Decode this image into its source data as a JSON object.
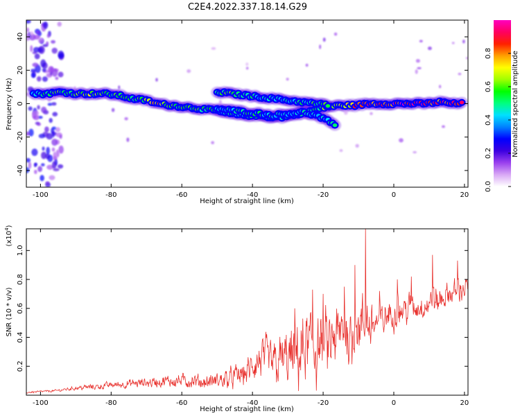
{
  "figure_title": "C2E4.2022.337.18.14.G29",
  "chart_data": [
    {
      "type": "heatmap",
      "title": "C2E4.2022.337.18.14.G29",
      "xlabel": "Height of straight line (km)",
      "ylabel": "Frequency (Hz)",
      "xlim": [
        -104,
        21
      ],
      "ylim": [
        -50,
        50
      ],
      "xticks": [
        -100,
        -80,
        -60,
        -40,
        -20,
        0,
        20
      ],
      "yticks": [
        -40,
        -20,
        0,
        20,
        40
      ],
      "colorbar": {
        "label": "Normalized spectral amplitude",
        "range": [
          0,
          1
        ],
        "ticks": [
          0.0,
          0.2,
          0.4,
          0.6,
          0.8
        ],
        "colors": [
          "#ffffff",
          "#d9a8f5",
          "#9a40ee",
          "#3c00e0",
          "#0000ff",
          "#0080ff",
          "#00e0ff",
          "#00ff80",
          "#00ff00",
          "#a0ff00",
          "#ffff00",
          "#ffa000",
          "#ff2000",
          "#ff0060",
          "#ff00c0"
        ]
      },
      "ridges": [
        {
          "name": "main",
          "points": [
            [
              -102,
              6,
              0.35
            ],
            [
              -98,
              6,
              0.5
            ],
            [
              -94,
              7,
              0.55
            ],
            [
              -90,
              6,
              0.55
            ],
            [
              -86,
              6,
              0.6
            ],
            [
              -82,
              6,
              0.55
            ],
            [
              -78,
              5,
              0.5
            ],
            [
              -74,
              3,
              0.5
            ],
            [
              -70,
              2,
              0.55
            ],
            [
              -67,
              0,
              0.75
            ],
            [
              -63,
              -1,
              0.5
            ],
            [
              -59,
              -2,
              0.55
            ],
            [
              -55,
              -3,
              0.5
            ],
            [
              -51,
              -4,
              0.45
            ],
            [
              -47,
              -6,
              0.45
            ],
            [
              -43,
              -7,
              0.4
            ],
            [
              -39,
              -7,
              0.45
            ],
            [
              -35,
              -8,
              0.4
            ],
            [
              -31,
              -8,
              0.4
            ],
            [
              -27,
              -6,
              0.45
            ],
            [
              -23,
              -4,
              0.45
            ],
            [
              -19,
              -2,
              0.55
            ],
            [
              -15,
              -1,
              0.6
            ],
            [
              -11,
              -1,
              0.75
            ],
            [
              -7,
              0,
              0.8
            ],
            [
              -3,
              0,
              0.75
            ],
            [
              1,
              0,
              0.85
            ],
            [
              5,
              0,
              0.9
            ],
            [
              9,
              0,
              0.85
            ],
            [
              13,
              1,
              0.8
            ],
            [
              17,
              0,
              0.85
            ],
            [
              20,
              0,
              0.8
            ]
          ]
        },
        {
          "name": "upper",
          "points": [
            [
              -50,
              7,
              0.45
            ],
            [
              -46,
              6,
              0.55
            ],
            [
              -42,
              5,
              0.45
            ],
            [
              -38,
              4,
              0.4
            ],
            [
              -34,
              3,
              0.4
            ],
            [
              -30,
              2,
              0.4
            ],
            [
              -26,
              1,
              0.45
            ],
            [
              -22,
              0,
              0.5
            ],
            [
              -18,
              -1,
              0.5
            ]
          ]
        },
        {
          "name": "lower",
          "points": [
            [
              -50,
              -3,
              0.35
            ],
            [
              -46,
              -4,
              0.4
            ],
            [
              -42,
              -5,
              0.5
            ],
            [
              -38,
              -6,
              0.45
            ],
            [
              -34,
              -7,
              0.4
            ],
            [
              -30,
              -6,
              0.4
            ],
            [
              -26,
              -5,
              0.4
            ],
            [
              -22,
              -7,
              0.35
            ],
            [
              -18,
              -11,
              0.4
            ],
            [
              -16,
              -15,
              0.45
            ]
          ]
        }
      ]
    },
    {
      "type": "line",
      "xlabel": "Height of straight line (km)",
      "ylabel": "SNR (10 * v/v)",
      "multiplier": "(x10",
      "multiplier_exp": "4",
      "multiplier_close": ")",
      "xlim": [
        -104,
        21
      ],
      "ylim": [
        0,
        1.15
      ],
      "xticks": [
        -100,
        -80,
        -60,
        -40,
        -20,
        0,
        20
      ],
      "yticks": [
        0.2,
        0.4,
        0.6,
        0.8,
        1.0
      ],
      "line_color": "#e8302c",
      "series": [
        {
          "x": [
            -104,
            -96,
            -90,
            -84,
            -80,
            -74,
            -68,
            -62,
            -58,
            -54,
            -50,
            -46,
            -42,
            -40,
            -37,
            -34,
            -31,
            -28,
            -26,
            -24,
            -22,
            -20,
            -18,
            -16,
            -14,
            -12,
            -10,
            -8,
            -6,
            -4,
            -2,
            0,
            2,
            4,
            6,
            8,
            10,
            12,
            14,
            16,
            18,
            20,
            21
          ],
          "y_mean": [
            0.02,
            0.03,
            0.05,
            0.06,
            0.07,
            0.08,
            0.09,
            0.1,
            0.1,
            0.09,
            0.1,
            0.12,
            0.15,
            0.2,
            0.25,
            0.22,
            0.25,
            0.25,
            0.3,
            0.32,
            0.34,
            0.35,
            0.33,
            0.4,
            0.45,
            0.4,
            0.47,
            0.48,
            0.5,
            0.5,
            0.55,
            0.56,
            0.58,
            0.6,
            0.6,
            0.62,
            0.63,
            0.64,
            0.68,
            0.7,
            0.72,
            0.74,
            0.76
          ],
          "y_spread": [
            0.01,
            0.01,
            0.02,
            0.03,
            0.03,
            0.04,
            0.05,
            0.06,
            0.07,
            0.06,
            0.08,
            0.1,
            0.12,
            0.15,
            0.2,
            0.22,
            0.25,
            0.3,
            0.35,
            0.38,
            0.4,
            0.3,
            0.35,
            0.3,
            0.25,
            0.3,
            0.2,
            0.35,
            0.2,
            0.15,
            0.15,
            0.15,
            0.12,
            0.15,
            0.12,
            0.12,
            0.12,
            0.15,
            0.12,
            0.1,
            0.12,
            0.1,
            0.08
          ],
          "peaks": [
            [
              -8,
              1.15
            ],
            [
              -11,
              0.9
            ],
            [
              -23,
              0.73
            ],
            [
              -28,
              0.6
            ],
            [
              -20,
              0.7
            ],
            [
              -14,
              0.75
            ],
            [
              -4,
              0.72
            ],
            [
              1,
              0.8
            ],
            [
              5,
              0.82
            ],
            [
              11,
              0.97
            ],
            [
              18,
              0.93
            ]
          ]
        }
      ]
    }
  ]
}
